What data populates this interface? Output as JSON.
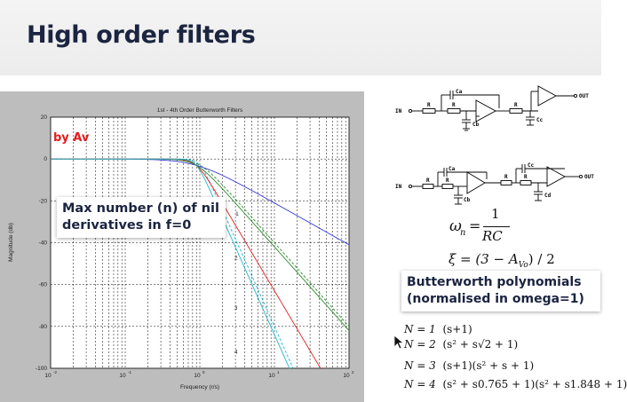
{
  "title": "High order filters",
  "overlay": {
    "nil_derivatives": "Max number (n) of nil derivatives in f=0",
    "by_av": "by Av",
    "butterworth_label": "Butterworth polynomials (normalised in omega=1)"
  },
  "circuits": {
    "in_label": "IN",
    "out_label": "OUT",
    "r_label": "R",
    "ca_label": "Ca",
    "cb_label": "Cb",
    "cc_label": "Cc",
    "cd_label": "Cd",
    "ce_label": "Ce"
  },
  "equations": {
    "omega_lhs": "ω",
    "omega_sub": "n",
    "omega_num": "1",
    "omega_den": "RC",
    "xi": "ξ = (3 − A",
    "xi_sub": "Vo",
    "xi_tail": ") / 2"
  },
  "polynomials": [
    {
      "n": "N = 1",
      "expr": "(s+1)"
    },
    {
      "n": "N = 2",
      "expr": "(s² + s√2 + 1)"
    },
    {
      "n": "N = 3",
      "expr": "(s+1)(s² + s + 1)"
    },
    {
      "n": "N = 4",
      "expr": "(s² + s0.765 + 1)(s² + s1.848 + 1)"
    }
  ],
  "chart_data": {
    "type": "line",
    "title": "1st - 4th Order Butterworth Filters",
    "xlabel": "Frequency (r/s)",
    "ylabel": "Magnitude (db)",
    "x_scale": "log",
    "xlim": [
      0.01,
      100
    ],
    "ylim": [
      -100,
      20
    ],
    "grid": true,
    "x_ticks": [
      {
        "value": 0.01,
        "base": "10",
        "exp": "-2"
      },
      {
        "value": 0.1,
        "base": "10",
        "exp": "-1"
      },
      {
        "value": 1,
        "base": "10",
        "exp": "0"
      },
      {
        "value": 10,
        "base": "10",
        "exp": "1"
      },
      {
        "value": 100,
        "base": "10",
        "exp": "2"
      }
    ],
    "y_ticks": [
      "20",
      "0",
      "-20",
      "-40",
      "-60",
      "-80",
      "-100"
    ],
    "y_tick_values": [
      20,
      0,
      -20,
      -40,
      -60,
      -80,
      -100
    ],
    "series": [
      {
        "label": "1",
        "order": 1,
        "color": "#3b3bd6",
        "label_x": 3,
        "label_y": -27
      },
      {
        "label": "2",
        "order": 2,
        "color": "#2e8b2e",
        "label_x": 2.9,
        "label_y": -48
      },
      {
        "label": "3",
        "order": 3,
        "color": "#e02020",
        "label_x": 2.9,
        "label_y": -72
      },
      {
        "label": "4",
        "order": 4,
        "color": "#20b8c8",
        "label_x": 2.9,
        "label_y": -93
      }
    ],
    "dashed_series": [
      {
        "order": 2,
        "color": "#2e8b2e"
      },
      {
        "order": 4,
        "color": "#20b8c8"
      }
    ]
  }
}
